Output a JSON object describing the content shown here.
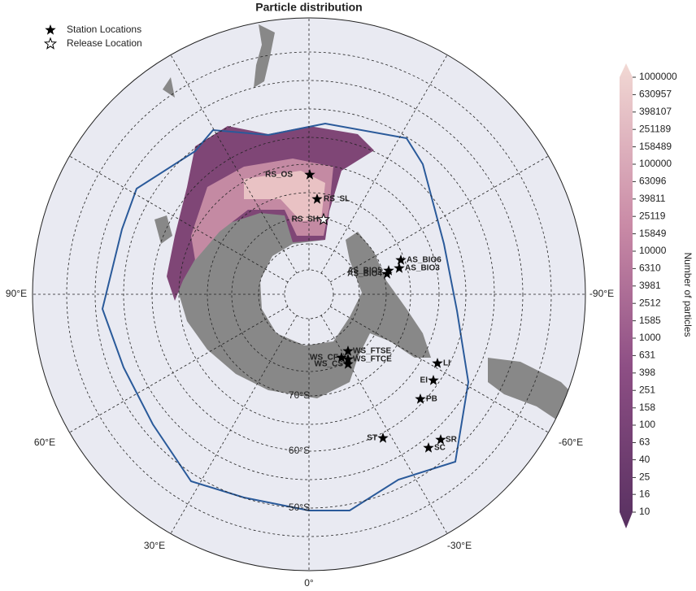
{
  "title": "Particle distribution",
  "legend": {
    "items": [
      "Station Locations",
      "Release Location"
    ]
  },
  "map": {
    "longitude_labels": [
      "0°",
      "30°E",
      "60°E",
      "90°E",
      "-90°E",
      "-60°E",
      "-30°E"
    ],
    "latitude_labels": [
      "50°S",
      "60°S",
      "70°S"
    ],
    "stations": [
      "RS_OS",
      "RS_SL",
      "AS_BIO6",
      "AS_BIO3",
      "AS_BIO5",
      "AS_BIO4",
      "WS_FTSE",
      "WS_CF",
      "WS_FTCE",
      "WS_CS",
      "LI",
      "EI",
      "PB",
      "ST",
      "SR",
      "SC"
    ],
    "release": "RS_SH"
  },
  "colorbar": {
    "type": "colorbar",
    "label": "Number of particles",
    "log_scale": true,
    "ylim": [
      10,
      1000000
    ],
    "yticks": [
      10,
      16,
      25,
      40,
      63,
      100,
      158,
      251,
      398,
      631,
      1000,
      1585,
      2512,
      3981,
      6310,
      10000,
      15849,
      25119,
      39811,
      63096,
      100000,
      158489,
      251189,
      398107,
      630957,
      1000000
    ]
  }
}
